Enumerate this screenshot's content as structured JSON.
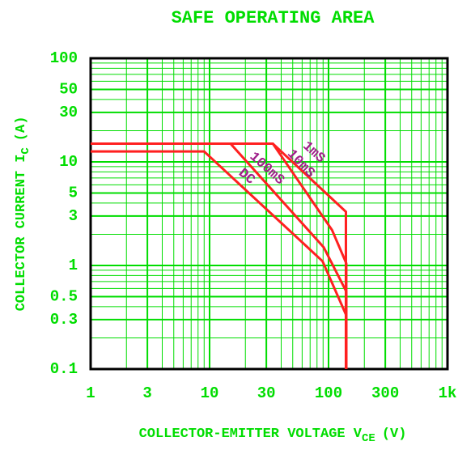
{
  "chart_data": {
    "type": "line",
    "title": "SAFE OPERATING AREA",
    "x_label": {
      "text": "COLLECTOR-EMITTER VOLTAGE V",
      "sub": "CE",
      "unit": "(V)"
    },
    "y_label": {
      "text": "COLLECTOR CURRENT I",
      "sub": "C",
      "unit": "(A)"
    },
    "log_x": true,
    "log_y": true,
    "grid": true,
    "minor_grid": true,
    "grid_color": "#00dd00",
    "xlim": [
      1,
      1000
    ],
    "ylim": [
      0.1,
      100
    ],
    "xticks": [
      1,
      3,
      10,
      30,
      100,
      300,
      {
        "value": 1000,
        "label": "1k"
      }
    ],
    "yticks": [
      0.1,
      0.3,
      0.5,
      1,
      3,
      5,
      10,
      30,
      50,
      100
    ],
    "series": [
      {
        "name": "1mS",
        "color": "#ff2020",
        "x": [
          1,
          34,
          140,
          140
        ],
        "values": [
          15,
          15,
          3.3,
          0.1
        ]
      },
      {
        "name": "10mS",
        "color": "#ff2020",
        "x": [
          1,
          34,
          107,
          141,
          141
        ],
        "values": [
          15,
          15,
          2.2,
          1.05,
          0.1
        ]
      },
      {
        "name": "100mS",
        "color": "#ff2020",
        "x": [
          1,
          15,
          91,
          141,
          141
        ],
        "values": [
          15,
          15,
          1.5,
          0.56,
          0.1
        ]
      },
      {
        "name": "DC",
        "color": "#ff2020",
        "x": [
          1,
          9,
          89,
          141,
          141
        ],
        "values": [
          12.6,
          12.6,
          1.1,
          0.33,
          0.1
        ]
      }
    ],
    "label_color": "#a0208a"
  }
}
